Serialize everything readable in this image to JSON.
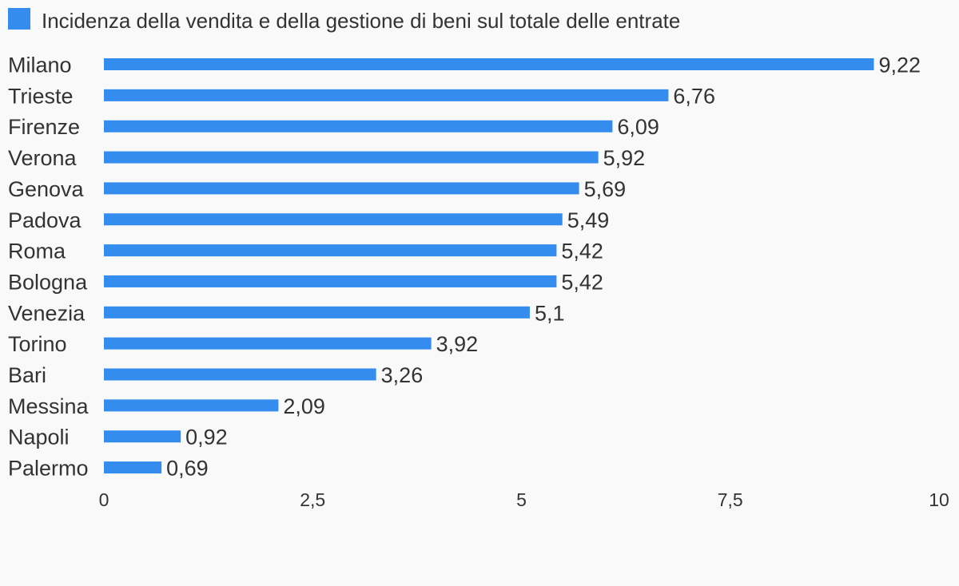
{
  "chart_data": {
    "type": "bar",
    "orientation": "horizontal",
    "title": "",
    "xlabel": "",
    "ylabel": "",
    "categories": [
      "Milano",
      "Trieste",
      "Firenze",
      "Verona",
      "Genova",
      "Padova",
      "Roma",
      "Bologna",
      "Venezia",
      "Torino",
      "Bari",
      "Messina",
      "Napoli",
      "Palermo"
    ],
    "series": [
      {
        "name": "Incidenza della vendita e della gestione di beni sul totale delle entrate",
        "color": "#348cef",
        "values": [
          9.22,
          6.76,
          6.09,
          5.92,
          5.69,
          5.49,
          5.42,
          5.42,
          5.1,
          3.92,
          3.26,
          2.09,
          0.92,
          0.69
        ],
        "value_labels": [
          "9,22",
          "6,76",
          "6,09",
          "5,92",
          "5,69",
          "5,49",
          "5,42",
          "5,42",
          "5,1",
          "3,92",
          "3,26",
          "2,09",
          "0,92",
          "0,69"
        ]
      }
    ],
    "xlim": [
      0,
      10
    ],
    "ticks": [
      0,
      2.5,
      5,
      7.5,
      10
    ],
    "tick_labels": [
      "0",
      "2,5",
      "5",
      "7,5",
      "10"
    ],
    "grid": false,
    "legend": "top-left"
  }
}
